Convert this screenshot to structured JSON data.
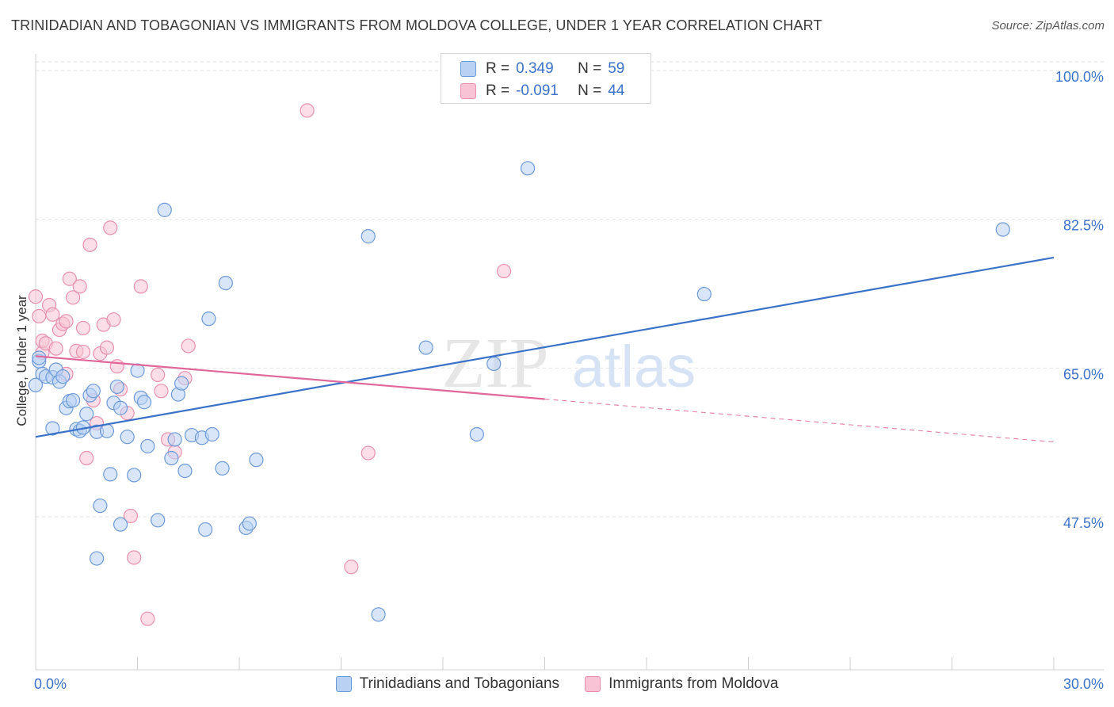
{
  "header": {
    "title": "TRINIDADIAN AND TOBAGONIAN VS IMMIGRANTS FROM MOLDOVA COLLEGE, UNDER 1 YEAR CORRELATION CHART",
    "source": "Source: ZipAtlas.com"
  },
  "watermark": {
    "zip": "ZIP",
    "atlas": "atlas"
  },
  "colors": {
    "blue": "#3a72c8",
    "blue_fill": "#b9d2f4",
    "blue_stroke": "#6d9ad8",
    "pink": "#e0679a",
    "pink_fill": "#f8c3d4",
    "pink_stroke": "#e890b0"
  },
  "legend": {
    "rows": [
      {
        "r_label": "R =",
        "r_value": "0.349",
        "n_label": "N =",
        "n_value": "59",
        "series": "blue"
      },
      {
        "r_label": "R =",
        "r_value": "-0.091",
        "n_label": "N =",
        "n_value": "44",
        "series": "pink"
      }
    ]
  },
  "chart_data": {
    "type": "scatter",
    "title": "TRINIDADIAN AND TOBAGONIAN VS IMMIGRANTS FROM MOLDOVA COLLEGE, UNDER 1 YEAR CORRELATION CHART",
    "xlabel": "",
    "ylabel": "College, Under 1 year",
    "xlim": [
      0,
      30
    ],
    "ylim": [
      32,
      102
    ],
    "x_tick_labels": [
      "0.0%",
      "30.0%"
    ],
    "y_ticks": [
      100.0,
      82.5,
      65.0,
      47.5
    ],
    "y_tick_labels": [
      "100.0%",
      "82.5%",
      "65.0%",
      "47.5%"
    ],
    "grid": true,
    "legend_position": "top-center",
    "series": [
      {
        "name": "Trinidadians and Tobagonians",
        "color": "blue",
        "r": 0.349,
        "n": 59,
        "trend": {
          "x": [
            0,
            30
          ],
          "y": [
            56.9,
            78.0
          ],
          "dashed_from": null
        },
        "points": [
          [
            0.1,
            65.8
          ],
          [
            0.1,
            66.2
          ],
          [
            0.2,
            64.3
          ],
          [
            0.3,
            64.0
          ],
          [
            0.5,
            63.9
          ],
          [
            0.5,
            57.9
          ],
          [
            0.6,
            64.8
          ],
          [
            0.7,
            63.4
          ],
          [
            0.8,
            64.0
          ],
          [
            0.9,
            60.3
          ],
          [
            1.0,
            61.1
          ],
          [
            1.1,
            61.2
          ],
          [
            1.2,
            57.8
          ],
          [
            1.3,
            57.6
          ],
          [
            1.4,
            58.0
          ],
          [
            1.5,
            59.6
          ],
          [
            1.6,
            61.8
          ],
          [
            1.7,
            62.3
          ],
          [
            1.8,
            57.5
          ],
          [
            1.9,
            48.8
          ],
          [
            2.1,
            57.6
          ],
          [
            2.2,
            52.5
          ],
          [
            2.3,
            60.9
          ],
          [
            2.4,
            62.8
          ],
          [
            2.5,
            60.3
          ],
          [
            2.7,
            56.9
          ],
          [
            2.9,
            52.4
          ],
          [
            3.0,
            64.7
          ],
          [
            3.1,
            61.5
          ],
          [
            3.2,
            61.0
          ],
          [
            3.3,
            55.8
          ],
          [
            3.6,
            47.1
          ],
          [
            3.8,
            83.6
          ],
          [
            4.0,
            54.4
          ],
          [
            4.1,
            56.6
          ],
          [
            4.2,
            61.9
          ],
          [
            4.3,
            63.2
          ],
          [
            4.4,
            52.9
          ],
          [
            4.6,
            57.1
          ],
          [
            4.9,
            56.8
          ],
          [
            5.0,
            46.0
          ],
          [
            5.1,
            70.8
          ],
          [
            5.2,
            57.2
          ],
          [
            5.5,
            53.2
          ],
          [
            5.6,
            75.0
          ],
          [
            6.2,
            46.2
          ],
          [
            6.3,
            46.7
          ],
          [
            6.5,
            54.2
          ],
          [
            2.5,
            46.6
          ],
          [
            1.8,
            42.6
          ],
          [
            10.1,
            36.0
          ],
          [
            9.8,
            80.5
          ],
          [
            11.5,
            67.4
          ],
          [
            13.0,
            57.2
          ],
          [
            14.5,
            88.5
          ],
          [
            13.5,
            65.5
          ],
          [
            19.7,
            73.7
          ],
          [
            28.5,
            81.3
          ],
          [
            0.0,
            63.0
          ]
        ]
      },
      {
        "name": "Immigrants from Moldova",
        "color": "pink",
        "r": -0.091,
        "n": 44,
        "trend": {
          "x": [
            0,
            30
          ],
          "y": [
            66.4,
            56.3
          ],
          "dashed_from": 15
        },
        "points": [
          [
            0.0,
            73.4
          ],
          [
            0.1,
            71.1
          ],
          [
            0.2,
            66.8
          ],
          [
            0.2,
            68.2
          ],
          [
            0.3,
            67.9
          ],
          [
            0.4,
            72.4
          ],
          [
            0.5,
            71.3
          ],
          [
            0.6,
            67.3
          ],
          [
            0.7,
            69.5
          ],
          [
            0.8,
            70.2
          ],
          [
            0.9,
            70.5
          ],
          [
            0.9,
            64.3
          ],
          [
            1.0,
            75.5
          ],
          [
            1.1,
            73.3
          ],
          [
            1.2,
            67.0
          ],
          [
            1.3,
            74.6
          ],
          [
            1.4,
            66.9
          ],
          [
            1.4,
            69.7
          ],
          [
            1.5,
            54.4
          ],
          [
            1.6,
            79.5
          ],
          [
            1.7,
            61.2
          ],
          [
            1.8,
            58.5
          ],
          [
            1.9,
            66.7
          ],
          [
            2.0,
            70.1
          ],
          [
            2.1,
            67.4
          ],
          [
            2.2,
            81.5
          ],
          [
            2.3,
            70.7
          ],
          [
            2.4,
            65.2
          ],
          [
            2.5,
            62.5
          ],
          [
            2.7,
            59.7
          ],
          [
            2.8,
            47.6
          ],
          [
            2.9,
            42.7
          ],
          [
            3.1,
            74.6
          ],
          [
            3.3,
            35.5
          ],
          [
            3.6,
            64.2
          ],
          [
            3.7,
            62.3
          ],
          [
            3.9,
            56.6
          ],
          [
            4.1,
            55.1
          ],
          [
            4.4,
            63.8
          ],
          [
            4.5,
            67.6
          ],
          [
            8.0,
            95.3
          ],
          [
            9.3,
            41.6
          ],
          [
            9.8,
            55.0
          ],
          [
            13.8,
            76.4
          ]
        ]
      }
    ]
  },
  "bottom_legend": {
    "items": [
      {
        "label": "Trinidadians and Tobagonians",
        "series": "blue"
      },
      {
        "label": "Immigrants from Moldova",
        "series": "pink"
      }
    ]
  }
}
